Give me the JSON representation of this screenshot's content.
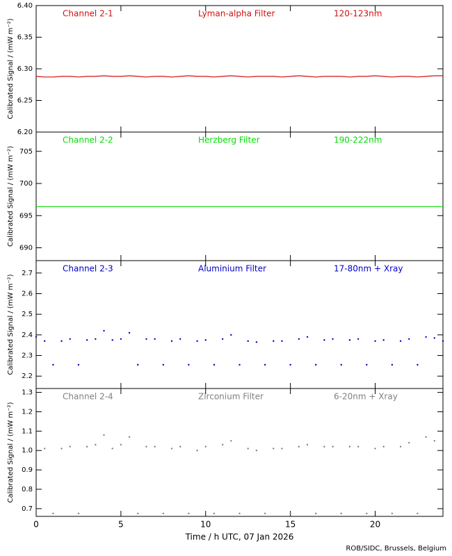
{
  "chart_data": [
    {
      "type": "line",
      "labels": [
        "Channel 2-1",
        "Lyman-alpha Filter",
        "120-123nm"
      ],
      "ylabel": "Calibrated Signal / (mW m⁻²)",
      "xlim": [
        0,
        24
      ],
      "ylim": [
        6.2,
        6.4
      ],
      "yticks": [
        {
          "value": 6.2,
          "label": "6.20"
        },
        {
          "value": 6.25,
          "label": "6.25"
        },
        {
          "value": 6.3,
          "label": "6.30"
        },
        {
          "value": 6.35,
          "label": "6.35"
        },
        {
          "value": 6.4,
          "label": "6.40"
        }
      ],
      "x": [
        0,
        0.5,
        1,
        1.5,
        2,
        2.5,
        3,
        3.5,
        4,
        4.5,
        5,
        5.5,
        6,
        6.5,
        7,
        7.5,
        8,
        8.5,
        9,
        9.5,
        10,
        10.5,
        11,
        11.5,
        12,
        12.5,
        13,
        13.5,
        14,
        14.5,
        15,
        15.5,
        16,
        16.5,
        17,
        17.5,
        18,
        18.5,
        19,
        19.5,
        20,
        20.5,
        21,
        21.5,
        22,
        22.5,
        23,
        23.5,
        24
      ],
      "series": [
        {
          "color": "#d01010",
          "values": [
            6.288,
            6.287,
            6.287,
            6.288,
            6.288,
            6.287,
            6.288,
            6.288,
            6.289,
            6.288,
            6.288,
            6.289,
            6.288,
            6.287,
            6.288,
            6.288,
            6.287,
            6.288,
            6.289,
            6.288,
            6.288,
            6.287,
            6.288,
            6.289,
            6.288,
            6.287,
            6.288,
            6.288,
            6.288,
            6.287,
            6.288,
            6.289,
            6.288,
            6.287,
            6.288,
            6.288,
            6.288,
            6.287,
            6.288,
            6.288,
            6.289,
            6.288,
            6.287,
            6.288,
            6.288,
            6.287,
            6.288,
            6.289,
            6.289
          ]
        }
      ]
    },
    {
      "type": "line",
      "labels": [
        "Channel 2-2",
        "Herzberg Filter",
        "190-222nm"
      ],
      "ylabel": "Calibrated Signal / (mW m⁻²)",
      "xlim": [
        0,
        24
      ],
      "ylim": [
        688,
        708
      ],
      "yticks": [
        690,
        695,
        700,
        705
      ],
      "x": [
        0,
        0.5,
        1,
        1.5,
        2,
        2.5,
        3,
        3.5,
        4,
        4.5,
        5,
        5.5,
        6,
        6.5,
        7,
        7.5,
        8,
        8.5,
        9,
        9.5,
        10,
        10.5,
        11,
        11.5,
        12,
        12.5,
        13,
        13.5,
        14,
        14.5,
        15,
        15.5,
        16,
        16.5,
        17,
        17.5,
        18,
        18.5,
        19,
        19.5,
        20,
        20.5,
        21,
        21.5,
        22,
        22.5,
        23,
        23.5,
        24
      ],
      "series": [
        {
          "color": "#00dd00",
          "values": [
            696.4,
            696.4,
            696.4,
            696.4,
            696.4,
            696.4,
            696.4,
            696.4,
            696.4,
            696.4,
            696.4,
            696.4,
            696.4,
            696.4,
            696.4,
            696.4,
            696.4,
            696.4,
            696.4,
            696.4,
            696.4,
            696.4,
            696.4,
            696.4,
            696.4,
            696.4,
            696.4,
            696.4,
            696.4,
            696.4,
            696.4,
            696.4,
            696.4,
            696.4,
            696.4,
            696.4,
            696.4,
            696.4,
            696.4,
            696.4,
            696.4,
            696.4,
            696.4,
            696.4,
            696.4,
            696.4,
            696.4,
            696.4,
            696.4
          ]
        }
      ]
    },
    {
      "type": "scatter",
      "labels": [
        "Channel 2-3",
        "Aluminium Filter",
        "17-80nm + Xray"
      ],
      "ylabel": "Calibrated Signal / (mW m⁻²)",
      "xlim": [
        0,
        24
      ],
      "ylim": [
        2.14,
        2.76
      ],
      "yticks": [
        2.2,
        2.3,
        2.4,
        2.5,
        2.6,
        2.7
      ],
      "x": [
        0,
        0.5,
        1,
        1.5,
        2,
        2.5,
        3,
        3.5,
        4,
        4.5,
        5,
        5.5,
        6,
        6.5,
        7,
        7.5,
        8,
        8.5,
        9,
        9.5,
        10,
        10.5,
        11,
        11.5,
        12,
        12.5,
        13,
        13.5,
        14,
        14.5,
        15,
        15.5,
        16,
        16.5,
        17,
        17.5,
        18,
        18.5,
        19,
        19.5,
        20,
        20.5,
        21,
        21.5,
        22,
        22.5,
        23,
        23.5,
        24
      ],
      "series": [
        {
          "color": "#0000cc",
          "values": [
            2.39,
            2.37,
            2.255,
            2.37,
            2.38,
            2.255,
            2.375,
            2.38,
            2.42,
            2.375,
            2.38,
            2.41,
            2.255,
            2.38,
            2.38,
            2.255,
            2.37,
            2.38,
            2.255,
            2.37,
            2.375,
            2.255,
            2.38,
            2.4,
            2.255,
            2.37,
            2.365,
            2.255,
            2.37,
            2.37,
            2.255,
            2.38,
            2.39,
            2.255,
            2.375,
            2.38,
            2.255,
            2.375,
            2.38,
            2.255,
            2.37,
            2.375,
            2.255,
            2.37,
            2.38,
            2.255,
            2.39,
            2.385,
            2.37
          ]
        }
      ]
    },
    {
      "type": "scatter",
      "labels": [
        "Channel 2-4",
        "Zirconium Filter",
        "6-20nm + Xray"
      ],
      "ylabel": "Calibrated Signal / (mW m⁻²)",
      "xlabel": "Time / h UTC, 07 Jan 2026",
      "xlim": [
        0,
        24
      ],
      "ylim": [
        0.66,
        1.32
      ],
      "xticks": [
        0,
        5,
        10,
        15,
        20
      ],
      "yticks": [
        0.7,
        0.8,
        0.9,
        {
          "value": 1,
          "label": "1.0"
        },
        1.1,
        1.2,
        1.3
      ],
      "x": [
        0,
        0.5,
        1,
        1.5,
        2,
        2.5,
        3,
        3.5,
        4,
        4.5,
        5,
        5.5,
        6,
        6.5,
        7,
        7.5,
        8,
        8.5,
        9,
        9.5,
        10,
        10.5,
        11,
        11.5,
        12,
        12.5,
        13,
        13.5,
        14,
        14.5,
        15,
        15.5,
        16,
        16.5,
        17,
        17.5,
        18,
        18.5,
        19,
        19.5,
        20,
        20.5,
        21,
        21.5,
        22,
        22.5,
        23,
        23.5,
        24
      ],
      "series": [
        {
          "color": "#808080",
          "values": [
            1.03,
            1.01,
            0.675,
            1.01,
            1.02,
            0.675,
            1.02,
            1.03,
            1.08,
            1.01,
            1.03,
            1.07,
            0.675,
            1.02,
            1.02,
            0.675,
            1.01,
            1.02,
            0.675,
            1.0,
            1.02,
            0.675,
            1.03,
            1.05,
            0.675,
            1.01,
            1.0,
            0.675,
            1.01,
            1.01,
            0.675,
            1.02,
            1.03,
            0.675,
            1.02,
            1.02,
            0.675,
            1.02,
            1.02,
            0.675,
            1.01,
            1.02,
            0.675,
            1.02,
            1.04,
            0.675,
            1.07,
            1.05,
            1.03
          ]
        }
      ]
    }
  ],
  "credit": "ROB/SIDC, Brussels, Belgium"
}
